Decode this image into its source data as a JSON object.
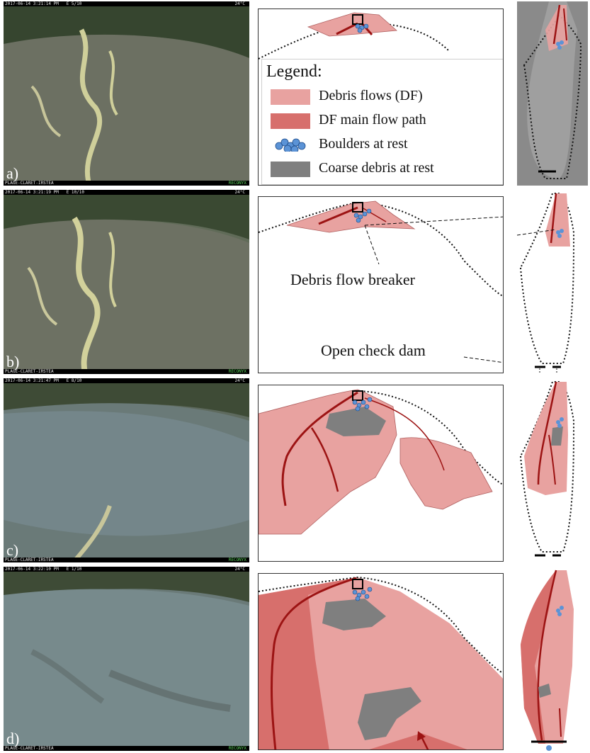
{
  "photos": [
    {
      "label": "a)",
      "stamp": "2017-06-14 3:21:14 PM   E 5/10",
      "temp": "24°C",
      "site": "PLAGE-CLARET-IRSTEA",
      "brand": "RECONYX"
    },
    {
      "label": "b)",
      "stamp": "2017-06-14 3:21:19 PM   E 10/10",
      "temp": "24°C",
      "site": "PLAGE-CLARET-IRSTEA",
      "brand": "RECONYX"
    },
    {
      "label": "c)",
      "stamp": "2017-06-14 3:21:47 PM   E 8/10",
      "temp": "24°C",
      "site": "PLAGE-CLARET-IRSTEA",
      "brand": "RECONYX"
    },
    {
      "label": "d)",
      "stamp": "2017-06-14 3:22:10 PM   E 1/10",
      "temp": "24°C",
      "site": "PLAGE-CLARET-IRSTEA",
      "brand": "RECONYX"
    }
  ],
  "legend": {
    "title": "Legend:",
    "items": [
      {
        "label": "Debris flows (DF)",
        "color": "#e8a2a0",
        "icon": "light-red-swatch"
      },
      {
        "label": "DF main flow path",
        "color": "#d76f6c",
        "icon": "dark-red-swatch"
      },
      {
        "label": "Boulders at rest",
        "color": "#5b93d6",
        "icon": "boulder-cluster-icon"
      },
      {
        "label": "Coarse debris at rest",
        "color": "#7f7f7f",
        "icon": "grey-swatch"
      }
    ]
  },
  "annotations": {
    "breaker": "Debris flow breaker",
    "check_dam": "Open check dam"
  },
  "colors": {
    "debris_light": "#e8a2a0",
    "debris_dark": "#d76f6c",
    "flow_path": "#9c1313",
    "boulder": "#5b93d6",
    "coarse": "#7f7f7f"
  }
}
